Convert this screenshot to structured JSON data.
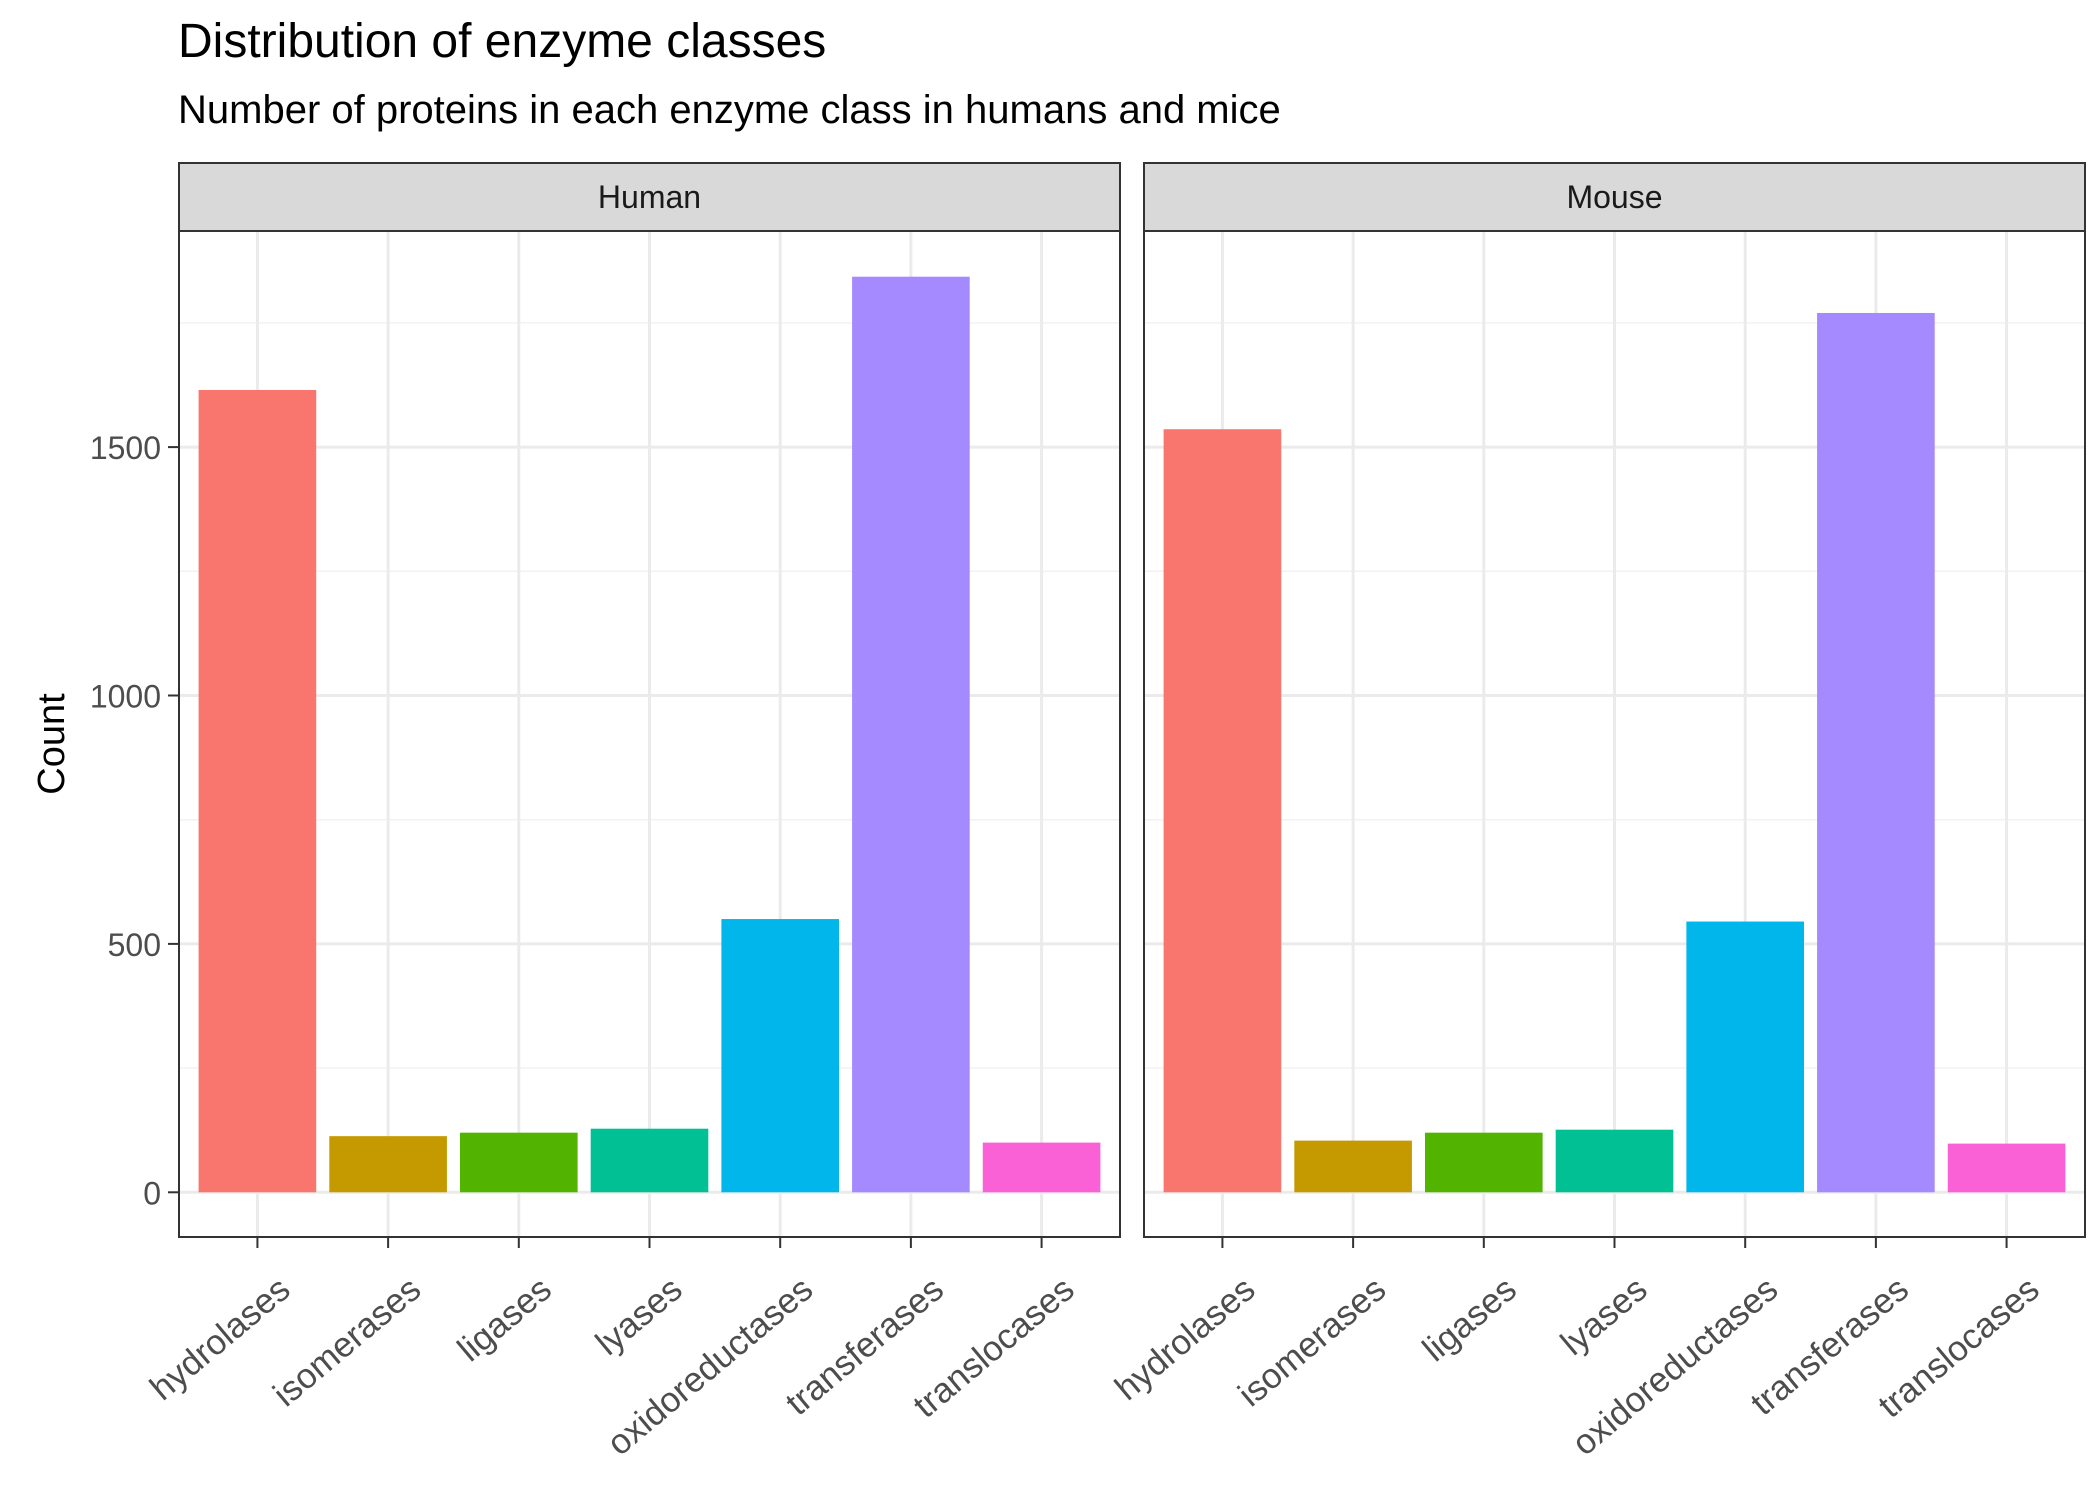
{
  "chart_data": {
    "type": "bar",
    "title": "Distribution of enzyme classes",
    "subtitle": "Number of proteins in each enzyme class in humans and mice",
    "ylabel": "Count",
    "xlabel": "",
    "ylim": [
      -90,
      1935
    ],
    "yticks": [
      0,
      500,
      1000,
      1500
    ],
    "grid": true,
    "legend": "none",
    "categories": [
      "hydrolases",
      "isomerases",
      "ligases",
      "lyases",
      "oxidoreductases",
      "transferases",
      "translocases"
    ],
    "colors": [
      "#F8766D",
      "#C49A00",
      "#53B400",
      "#00C094",
      "#00B6EB",
      "#A58AFF",
      "#FB61D7"
    ],
    "panels": [
      {
        "name": "Human",
        "values": [
          1615,
          113,
          120,
          128,
          550,
          1843,
          100
        ]
      },
      {
        "name": "Mouse",
        "values": [
          1536,
          104,
          120,
          126,
          545,
          1770,
          98
        ]
      }
    ]
  }
}
